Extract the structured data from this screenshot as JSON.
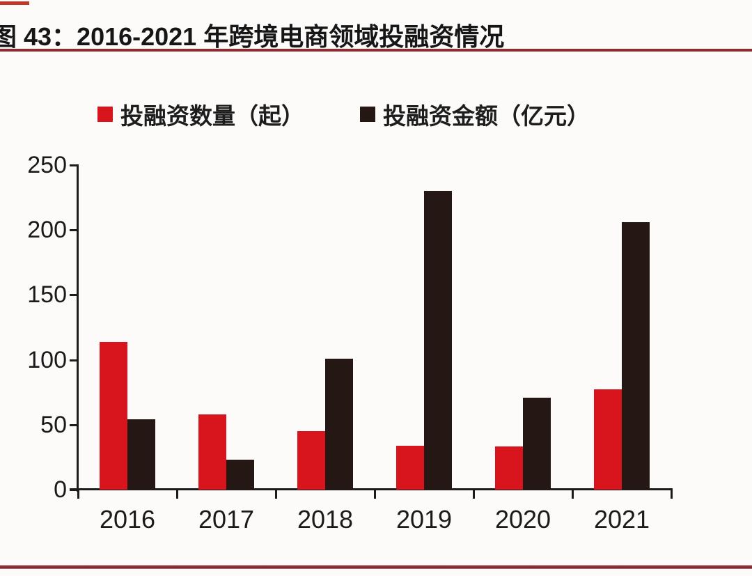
{
  "header": {
    "title": "图 43：2016-2021 年跨境电商领域投融资情况"
  },
  "chart_data": {
    "type": "bar",
    "title": "2016-2021 年跨境电商领域投融资情况",
    "categories": [
      "2016",
      "2017",
      "2018",
      "2019",
      "2020",
      "2021"
    ],
    "series": [
      {
        "name": "投融资数量（起）",
        "color": "#d8151d",
        "values": [
          114,
          58,
          45,
          34,
          33,
          77
        ]
      },
      {
        "name": "投融资金额（亿元）",
        "color": "#251713",
        "values": [
          54,
          23,
          101,
          230,
          71,
          206
        ]
      }
    ],
    "xlabel": "",
    "ylabel": "",
    "ylim": [
      0,
      250
    ],
    "yticks": [
      0,
      50,
      100,
      150,
      200,
      250
    ],
    "grid": false,
    "legend_position": "top-center"
  },
  "colors": {
    "accent_rule": "#8d2c32",
    "top_streak": "#c0392b",
    "bar_red": "#d8151d",
    "bar_black": "#251713",
    "axis": "#1c1c1c",
    "background": "#fcfbfa"
  }
}
